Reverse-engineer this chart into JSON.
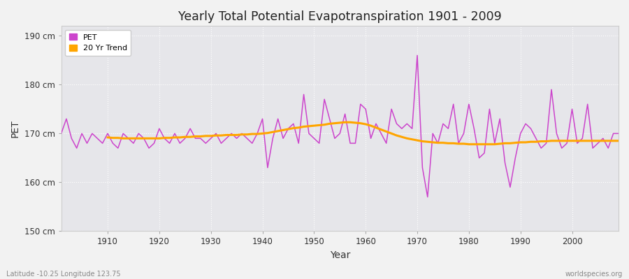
{
  "title": "Yearly Total Potential Evapotranspiration 1901 - 2009",
  "xlabel": "Year",
  "ylabel": "PET",
  "subtitle": "Latitude -10.25 Longitude 123.75",
  "watermark": "worldspecies.org",
  "pet_color": "#cc44cc",
  "trend_color": "#FFA500",
  "ylim": [
    150,
    192
  ],
  "yticks": [
    150,
    160,
    170,
    180,
    190
  ],
  "ytick_labels": [
    "150 cm",
    "160 cm",
    "170 cm",
    "180 cm",
    "190 cm"
  ],
  "bg_color": "#f0f0f0",
  "plot_bg": "#e8e8ec",
  "years": [
    1901,
    1902,
    1903,
    1904,
    1905,
    1906,
    1907,
    1908,
    1909,
    1910,
    1911,
    1912,
    1913,
    1914,
    1915,
    1916,
    1917,
    1918,
    1919,
    1920,
    1921,
    1922,
    1923,
    1924,
    1925,
    1926,
    1927,
    1928,
    1929,
    1930,
    1931,
    1932,
    1933,
    1934,
    1935,
    1936,
    1937,
    1938,
    1939,
    1940,
    1941,
    1942,
    1943,
    1944,
    1945,
    1946,
    1947,
    1948,
    1949,
    1950,
    1951,
    1952,
    1953,
    1954,
    1955,
    1956,
    1957,
    1958,
    1959,
    1960,
    1961,
    1962,
    1963,
    1964,
    1965,
    1966,
    1967,
    1968,
    1969,
    1970,
    1971,
    1972,
    1973,
    1974,
    1975,
    1976,
    1977,
    1978,
    1979,
    1980,
    1981,
    1982,
    1983,
    1984,
    1985,
    1986,
    1987,
    1988,
    1989,
    1990,
    1991,
    1992,
    1993,
    1994,
    1995,
    1996,
    1997,
    1998,
    1999,
    2000,
    2001,
    2002,
    2003,
    2004,
    2005,
    2006,
    2007,
    2008,
    2009
  ],
  "pet": [
    170,
    173,
    169,
    167,
    170,
    168,
    170,
    169,
    168,
    170,
    168,
    167,
    170,
    169,
    168,
    170,
    169,
    167,
    168,
    171,
    169,
    168,
    170,
    168,
    169,
    171,
    169,
    169,
    168,
    169,
    170,
    168,
    169,
    170,
    169,
    170,
    169,
    168,
    170,
    173,
    163,
    169,
    173,
    169,
    171,
    172,
    168,
    178,
    170,
    169,
    168,
    177,
    173,
    169,
    170,
    174,
    168,
    168,
    176,
    175,
    169,
    172,
    170,
    168,
    175,
    172,
    171,
    172,
    171,
    186,
    163,
    157,
    170,
    168,
    172,
    171,
    176,
    168,
    170,
    176,
    171,
    165,
    166,
    175,
    168,
    173,
    164,
    159,
    165,
    170,
    172,
    171,
    169,
    167,
    168,
    179,
    170,
    167,
    168,
    175,
    168,
    169,
    176,
    167,
    168,
    169,
    167,
    170,
    170
  ],
  "trend_years": [
    1910,
    1911,
    1912,
    1913,
    1914,
    1915,
    1916,
    1917,
    1918,
    1919,
    1920,
    1921,
    1922,
    1923,
    1924,
    1925,
    1926,
    1927,
    1928,
    1929,
    1930,
    1931,
    1932,
    1933,
    1934,
    1935,
    1936,
    1937,
    1938,
    1939,
    1940,
    1941,
    1942,
    1943,
    1944,
    1945,
    1946,
    1947,
    1948,
    1949,
    1950,
    1951,
    1952,
    1953,
    1954,
    1955,
    1956,
    1957,
    1958,
    1959,
    1960,
    1961,
    1962,
    1963,
    1964,
    1965,
    1966,
    1967,
    1968,
    1969,
    1970,
    1971,
    1972,
    1973,
    1974,
    1975,
    1976,
    1977,
    1978,
    1979,
    1980,
    1981,
    1982,
    1983,
    1984,
    1985,
    1986,
    1987,
    1988,
    1989,
    1990,
    1991,
    1992,
    1993,
    1994,
    1995,
    1996,
    1997,
    1998,
    1999,
    2000,
    2001,
    2002,
    2003,
    2004,
    2005,
    2006,
    2007,
    2008,
    2009
  ],
  "trend": [
    169.2,
    169.1,
    169.1,
    169.0,
    169.0,
    169.0,
    169.0,
    169.0,
    169.0,
    169.0,
    169.0,
    169.1,
    169.1,
    169.2,
    169.2,
    169.3,
    169.3,
    169.4,
    169.4,
    169.5,
    169.5,
    169.6,
    169.6,
    169.7,
    169.7,
    169.7,
    169.8,
    169.8,
    169.9,
    169.9,
    170.0,
    170.1,
    170.3,
    170.5,
    170.7,
    170.9,
    171.1,
    171.2,
    171.4,
    171.5,
    171.6,
    171.7,
    171.8,
    172.0,
    172.1,
    172.2,
    172.3,
    172.3,
    172.2,
    172.1,
    171.9,
    171.6,
    171.2,
    170.8,
    170.4,
    170.0,
    169.6,
    169.3,
    169.0,
    168.8,
    168.6,
    168.4,
    168.3,
    168.2,
    168.1,
    168.1,
    168.0,
    168.0,
    167.9,
    167.9,
    167.8,
    167.8,
    167.8,
    167.8,
    167.8,
    167.8,
    167.9,
    168.0,
    168.0,
    168.1,
    168.2,
    168.2,
    168.3,
    168.3,
    168.4,
    168.4,
    168.5,
    168.5,
    168.5,
    168.5,
    168.5,
    168.5,
    168.5,
    168.5,
    168.5,
    168.5,
    168.5,
    168.5,
    168.5,
    168.5
  ]
}
